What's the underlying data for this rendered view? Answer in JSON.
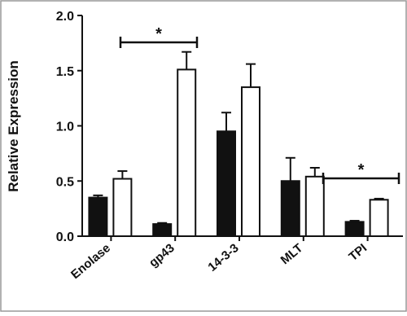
{
  "chart_data": {
    "type": "bar",
    "y_label": "Relative Expression",
    "categories": [
      "Enolase",
      "gp43",
      "14-3-3",
      "MLT",
      "TPI"
    ],
    "series": [
      {
        "color": "#111111",
        "values": [
          0.35,
          0.11,
          0.95,
          0.5,
          0.13
        ],
        "errors": [
          0.02,
          0.01,
          0.17,
          0.21,
          0.01
        ]
      },
      {
        "color": "#ffffff",
        "values": [
          0.52,
          1.51,
          1.35,
          0.54,
          0.33
        ],
        "errors": [
          0.07,
          0.16,
          0.21,
          0.08,
          0.01
        ]
      }
    ],
    "ylim": [
      0,
      2
    ],
    "yticks": [
      {
        "value": 0,
        "label": "0.0"
      },
      {
        "value": 0.5,
        "label": "0.5"
      },
      {
        "value": 1,
        "label": "1.0"
      },
      {
        "value": 1.5,
        "label": "1.5"
      },
      {
        "value": 2,
        "label": "2.0"
      }
    ],
    "annotations": [
      {
        "text": "*"
      },
      {
        "text": "*"
      }
    ]
  }
}
